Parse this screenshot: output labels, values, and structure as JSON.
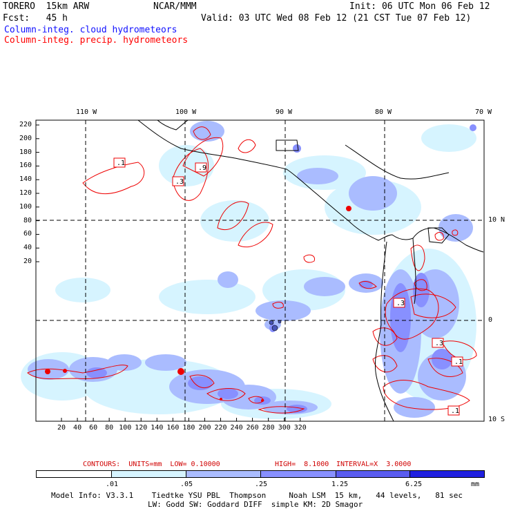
{
  "header": {
    "model": "TORERO  15km ARW",
    "org": "NCAR/MMM",
    "init": "Init: 06 UTC Mon 06 Feb 12",
    "fcst": "Fcst:   45 h",
    "valid": "Valid: 03 UTC Wed 08 Feb 12 (21 CST Tue 07 Feb 12)",
    "field_cloud": "Column-integ. cloud hydrometeors",
    "field_precip": "Column-integ. precip. hydrometeors"
  },
  "axes": {
    "lon_labels": [
      "110 W",
      "100 W",
      "90 W",
      "80 W",
      "70 W"
    ],
    "lat_labels": [
      "10 N",
      "0",
      "10 S"
    ],
    "y_ticks": [
      "220",
      "200",
      "180",
      "160",
      "140",
      "120",
      "100",
      "80",
      "60",
      "40",
      "20"
    ],
    "x_ticks": [
      "20",
      "40",
      "60",
      "80",
      "100",
      "120",
      "140",
      "160",
      "180",
      "200",
      "220",
      "240",
      "260",
      "280",
      "300",
      "320"
    ]
  },
  "contour_labels": [
    ".1",
    ".3",
    ".9",
    ".3",
    ".3",
    ".1",
    ".1"
  ],
  "contours_info": {
    "units": "CONTOURS:  UNITS=mm  LOW= 0.10000",
    "high": "HIGH=  8.1000",
    "interval": "INTERVAL=X  3.0000"
  },
  "colorbar": {
    "labels": [
      ".01",
      ".05",
      ".25",
      "1.25",
      "6.25"
    ],
    "unit": "mm",
    "colors": [
      "#ffffff",
      "#d6f4ff",
      "#aabcff",
      "#8890ff",
      "#5a5cf0",
      "#2020e0"
    ]
  },
  "model_info": {
    "line1": "Model Info: V3.3.1    Tiedtke YSU PBL  Thompson     Noah LSM  15 km,   44 levels,   81 sec",
    "line2": "LW: Godd SW: Goddard DIFF  simple KM: 2D Smagor"
  }
}
